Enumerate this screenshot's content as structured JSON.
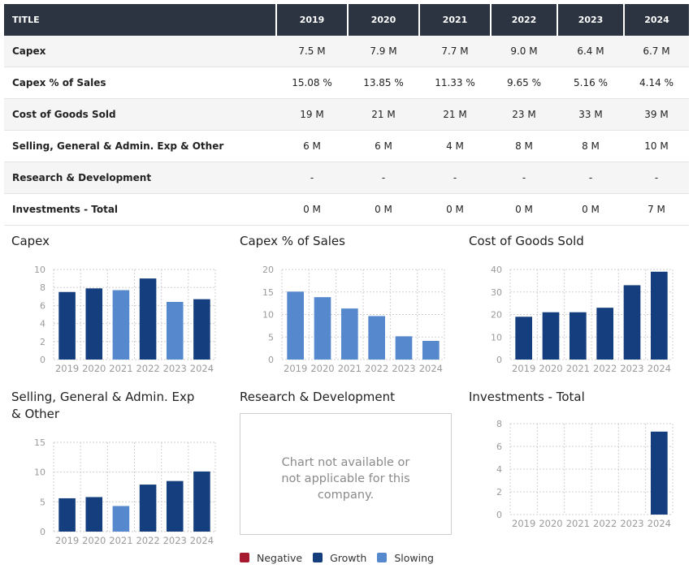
{
  "colors": {
    "negative": "#a6192e",
    "growth": "#143e7d",
    "slowing": "#5588cc",
    "grid": "#cfcfcf",
    "axis_text": "#9a9a9a"
  },
  "table": {
    "header": [
      "TITLE",
      "2019",
      "2020",
      "2021",
      "2022",
      "2023",
      "2024"
    ],
    "rows": [
      {
        "label": "Capex",
        "values": [
          "7.5 M",
          "7.9 M",
          "7.7 M",
          "9.0 M",
          "6.4 M",
          "6.7 M"
        ]
      },
      {
        "label": "Capex % of Sales",
        "values": [
          "15.08 %",
          "13.85 %",
          "11.33 %",
          "9.65 %",
          "5.16 %",
          "4.14 %"
        ]
      },
      {
        "label": "Cost of Goods Sold",
        "values": [
          "19 M",
          "21 M",
          "21 M",
          "23 M",
          "33 M",
          "39 M"
        ]
      },
      {
        "label": "Selling, General & Admin. Exp & Other",
        "values": [
          "6 M",
          "6 M",
          "4 M",
          "8 M",
          "8 M",
          "10 M"
        ]
      },
      {
        "label": "Research & Development",
        "values": [
          "-",
          "-",
          "-",
          "-",
          "-",
          "-"
        ]
      },
      {
        "label": "Investments - Total",
        "values": [
          "0 M",
          "0 M",
          "0 M",
          "0 M",
          "0 M",
          "7 M"
        ]
      }
    ]
  },
  "chart_data": [
    {
      "id": "capex",
      "type": "bar",
      "title": "Capex",
      "categories": [
        "2019",
        "2020",
        "2021",
        "2022",
        "2023",
        "2024"
      ],
      "values": [
        7.5,
        7.9,
        7.7,
        9.0,
        6.4,
        6.7
      ],
      "status": [
        "growth",
        "growth",
        "slowing",
        "growth",
        "slowing",
        "growth"
      ],
      "yticks": [
        0,
        2,
        4,
        6,
        8,
        10
      ],
      "ylim": [
        0,
        10
      ]
    },
    {
      "id": "capex_pct",
      "type": "bar",
      "title": "Capex % of Sales",
      "categories": [
        "2019",
        "2020",
        "2021",
        "2022",
        "2023",
        "2024"
      ],
      "values": [
        15.08,
        13.85,
        11.33,
        9.65,
        5.16,
        4.14
      ],
      "status": [
        "slowing",
        "slowing",
        "slowing",
        "slowing",
        "slowing",
        "slowing"
      ],
      "yticks": [
        0,
        5,
        10,
        15,
        20
      ],
      "ylim": [
        0,
        20
      ]
    },
    {
      "id": "cogs",
      "type": "bar",
      "title": "Cost of Goods Sold",
      "categories": [
        "2019",
        "2020",
        "2021",
        "2022",
        "2023",
        "2024"
      ],
      "values": [
        19,
        21,
        21,
        23,
        33,
        39
      ],
      "status": [
        "growth",
        "growth",
        "growth",
        "growth",
        "growth",
        "growth"
      ],
      "yticks": [
        0,
        10,
        20,
        30,
        40
      ],
      "ylim": [
        0,
        40
      ]
    },
    {
      "id": "sga",
      "type": "bar",
      "title": "Selling, General & Admin. Exp & Other",
      "categories": [
        "2019",
        "2020",
        "2021",
        "2022",
        "2023",
        "2024"
      ],
      "values": [
        5.6,
        5.8,
        4.3,
        7.9,
        8.5,
        10.1
      ],
      "status": [
        "growth",
        "growth",
        "slowing",
        "growth",
        "growth",
        "growth"
      ],
      "yticks": [
        0,
        5,
        10,
        15
      ],
      "ylim": [
        0,
        15
      ]
    },
    {
      "id": "rnd",
      "type": "bar",
      "title": "Research & Development",
      "categories": [],
      "values": [],
      "status": [],
      "unavailable_text": "Chart not available or not applicable for this company."
    },
    {
      "id": "inv",
      "type": "bar",
      "title": "Investments - Total",
      "categories": [
        "2019",
        "2020",
        "2021",
        "2022",
        "2023",
        "2024"
      ],
      "values": [
        0,
        0,
        0,
        0,
        0,
        7.3
      ],
      "status": [
        "growth",
        "growth",
        "growth",
        "growth",
        "growth",
        "growth"
      ],
      "yticks": [
        0,
        2,
        4,
        6,
        8
      ],
      "ylim": [
        0,
        8
      ]
    }
  ],
  "legend": [
    {
      "label": "Negative",
      "color": "#a6192e"
    },
    {
      "label": "Growth",
      "color": "#143e7d"
    },
    {
      "label": "Slowing",
      "color": "#5588cc"
    }
  ]
}
